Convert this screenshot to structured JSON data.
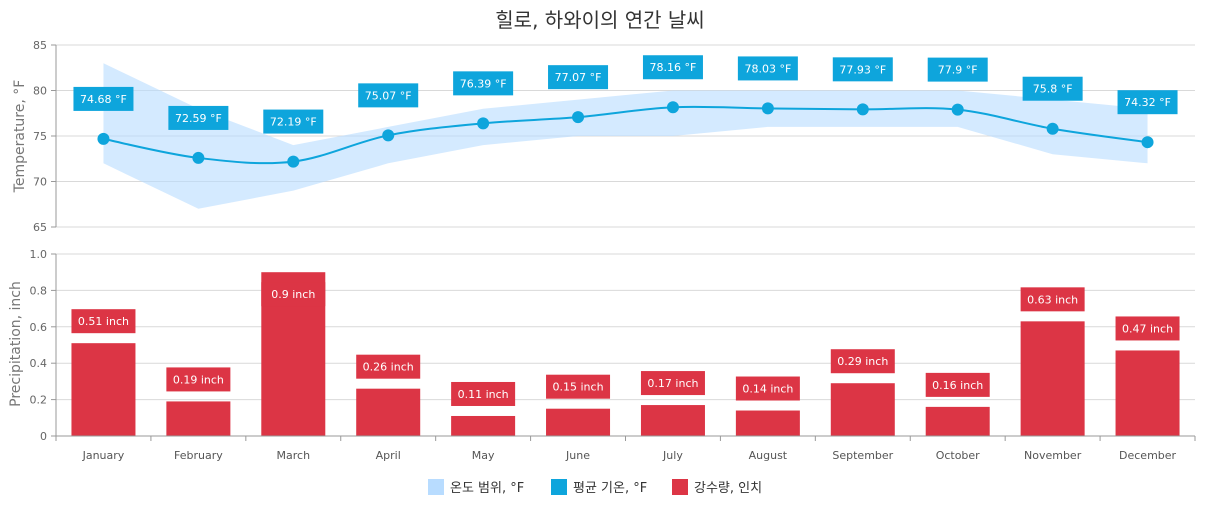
{
  "chart_data": {
    "type": "combo",
    "title": "힐로, 하와이의 연간 날씨",
    "categories": [
      "January",
      "February",
      "March",
      "April",
      "May",
      "June",
      "July",
      "August",
      "September",
      "October",
      "November",
      "December"
    ],
    "temperature": {
      "ylabel": "Temperature, °F",
      "ylim": [
        65,
        85
      ],
      "ticks": [
        65,
        70,
        75,
        80,
        85
      ],
      "range_series": {
        "name": "온도 범위, °F",
        "color": "#b8dcff",
        "low": [
          72,
          67,
          69,
          72,
          74,
          75,
          75,
          76,
          76,
          76,
          73,
          72
        ],
        "high": [
          83,
          78,
          74,
          76,
          78,
          79,
          80,
          80,
          80,
          80,
          79,
          78
        ]
      },
      "avg_series": {
        "name": "평균 기온, °F",
        "color": "#0ea5dc",
        "values": [
          74.68,
          72.59,
          72.19,
          75.07,
          76.39,
          77.07,
          78.16,
          78.03,
          77.93,
          77.9,
          75.8,
          74.32
        ],
        "labels": [
          "74.68 °F",
          "72.59 °F",
          "72.19 °F",
          "75.07 °F",
          "76.39 °F",
          "77.07 °F",
          "78.16 °F",
          "78.03 °F",
          "77.93 °F",
          "77.9 °F",
          "75.8 °F",
          "74.32 °F"
        ]
      }
    },
    "precipitation": {
      "ylabel": "Precipitation, inch",
      "ylim": [
        0,
        1.0
      ],
      "ticks": [
        0,
        0.2,
        0.4,
        0.6,
        0.8,
        1.0
      ],
      "tick_labels": [
        "0",
        "0.2",
        "0.4",
        "0.6",
        "0.8",
        "1.0"
      ],
      "series": {
        "name": "강수량, 인치",
        "color": "#dc3545",
        "values": [
          0.51,
          0.19,
          0.9,
          0.26,
          0.11,
          0.15,
          0.17,
          0.14,
          0.29,
          0.16,
          0.63,
          0.47
        ],
        "labels": [
          "0.51 inch",
          "0.19 inch",
          "0.9 inch",
          "0.26 inch",
          "0.11 inch",
          "0.15 inch",
          "0.17 inch",
          "0.14 inch",
          "0.29 inch",
          "0.16 inch",
          "0.63 inch",
          "0.47 inch"
        ]
      }
    },
    "legend": {
      "placement": "bottom",
      "items": [
        {
          "label": "온도 범위, °F",
          "color": "#b8dcff"
        },
        {
          "label": "평균 기온, °F",
          "color": "#0ea5dc"
        },
        {
          "label": "강수량, 인치",
          "color": "#dc3545"
        }
      ]
    },
    "grid": true
  }
}
